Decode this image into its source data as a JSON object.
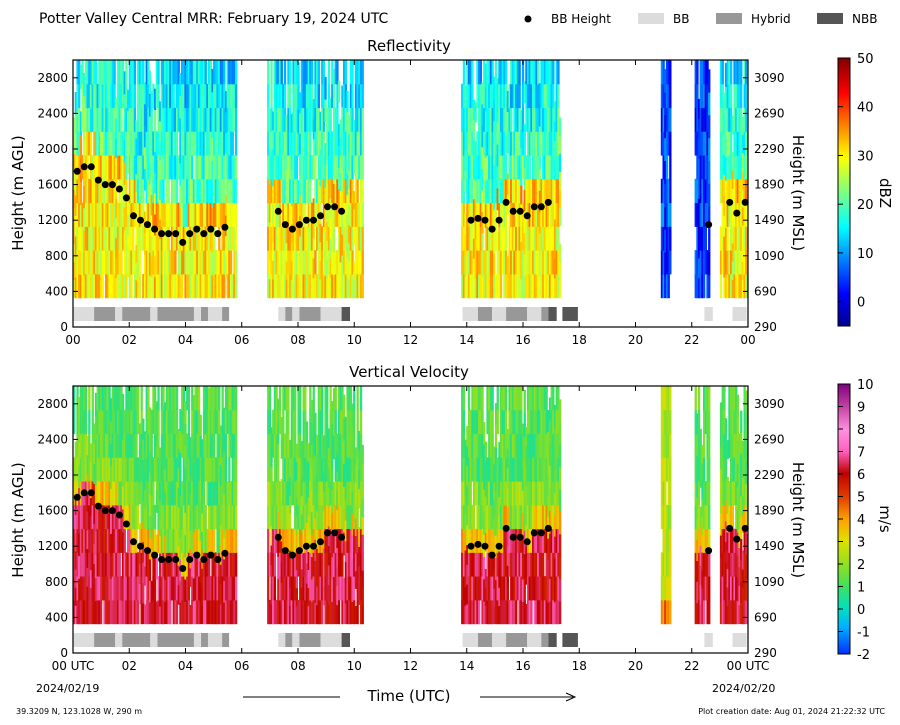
{
  "header": {
    "title": "Potter Valley Central MRR:  February 19, 2024 UTC",
    "legend": [
      {
        "label": "BB Height",
        "kind": "dot",
        "color": "#000000"
      },
      {
        "label": "BB",
        "kind": "swatch",
        "color": "#dcdcdc"
      },
      {
        "label": "Hybrid",
        "kind": "swatch",
        "color": "#989898"
      },
      {
        "label": "NBB",
        "kind": "swatch",
        "color": "#555555"
      }
    ]
  },
  "footer": {
    "location": "39.3209 N, 123.1028 W, 290 m",
    "creation_date": "Plot creation date: Aug 01, 2024 21:22:32 UTC",
    "xlabel": "Time (UTC)",
    "start_date": "2024/02/19",
    "end_date": "2024/02/20"
  },
  "colors": {
    "bb_light": "#dcdcdc",
    "hybrid": "#989898",
    "nbb": "#555555"
  },
  "chart_data": [
    {
      "type": "heatmap",
      "title": "Reflectivity",
      "ylabel": "Height (m AGL)",
      "ylabel_right": "Height (m MSL)",
      "colorbar_label": "dBZ",
      "colorbar_ticks": [
        "50",
        "40",
        "30",
        "20",
        "10",
        "0"
      ],
      "colorbar_range": [
        -5,
        50
      ],
      "colormap": "jet",
      "xlim": [
        0,
        24
      ],
      "ylim": [
        0,
        3000
      ],
      "x_ticks": [
        "00",
        "02",
        "04",
        "06",
        "08",
        "10",
        "12",
        "14",
        "16",
        "18",
        "20",
        "22",
        "00"
      ],
      "y_ticks": [
        "0",
        "400",
        "800",
        "1200",
        "1600",
        "2000",
        "2400",
        "2800"
      ],
      "y_ticks_right": [
        "290",
        "690",
        "1090",
        "1490",
        "1890",
        "2290",
        "2690",
        "3090"
      ],
      "data_periods": [
        [
          0,
          5.8
        ],
        [
          6.9,
          10.3
        ],
        [
          13.8,
          17.3
        ],
        [
          20.9,
          21.2
        ],
        [
          22.1,
          22.6
        ],
        [
          23.0,
          24.0
        ]
      ],
      "bb_height": {
        "x": [
          0.15,
          0.4,
          0.65,
          0.9,
          1.15,
          1.4,
          1.65,
          1.9,
          2.15,
          2.4,
          2.65,
          2.9,
          3.15,
          3.4,
          3.65,
          3.9,
          4.15,
          4.4,
          4.65,
          4.9,
          5.15,
          5.4,
          7.3,
          7.55,
          7.8,
          8.05,
          8.3,
          8.55,
          8.8,
          9.05,
          9.3,
          9.55,
          14.15,
          14.4,
          14.65,
          14.9,
          15.15,
          15.4,
          15.65,
          15.9,
          16.15,
          16.4,
          16.65,
          16.9,
          22.6,
          23.35,
          23.6,
          23.9
        ],
        "y": [
          1750,
          1800,
          1800,
          1650,
          1600,
          1600,
          1550,
          1450,
          1250,
          1200,
          1150,
          1100,
          1050,
          1050,
          1050,
          950,
          1050,
          1100,
          1050,
          1100,
          1050,
          1120,
          1300,
          1150,
          1100,
          1150,
          1200,
          1200,
          1250,
          1350,
          1350,
          1300,
          1200,
          1220,
          1200,
          1100,
          1200,
          1400,
          1300,
          1300,
          1250,
          1350,
          1350,
          1400,
          1150,
          1400,
          1280,
          1400
        ]
      },
      "bb_type_bar": [
        {
          "start": 0.0,
          "end": 0.75,
          "type": "BB"
        },
        {
          "start": 0.75,
          "end": 1.5,
          "type": "Hybrid"
        },
        {
          "start": 1.5,
          "end": 1.75,
          "type": "BB"
        },
        {
          "start": 1.75,
          "end": 2.75,
          "type": "Hybrid"
        },
        {
          "start": 2.75,
          "end": 3.0,
          "type": "BB"
        },
        {
          "start": 3.0,
          "end": 4.3,
          "type": "Hybrid"
        },
        {
          "start": 4.3,
          "end": 4.55,
          "type": "BB"
        },
        {
          "start": 4.55,
          "end": 4.8,
          "type": "Hybrid"
        },
        {
          "start": 4.8,
          "end": 5.3,
          "type": "BB"
        },
        {
          "start": 5.3,
          "end": 5.55,
          "type": "Hybrid"
        },
        {
          "start": 7.3,
          "end": 7.55,
          "type": "BB"
        },
        {
          "start": 7.55,
          "end": 7.8,
          "type": "Hybrid"
        },
        {
          "start": 7.8,
          "end": 8.05,
          "type": "BB"
        },
        {
          "start": 8.05,
          "end": 8.8,
          "type": "Hybrid"
        },
        {
          "start": 8.8,
          "end": 9.55,
          "type": "BB"
        },
        {
          "start": 9.55,
          "end": 9.85,
          "type": "NBB"
        },
        {
          "start": 13.85,
          "end": 14.4,
          "type": "BB"
        },
        {
          "start": 14.4,
          "end": 14.9,
          "type": "Hybrid"
        },
        {
          "start": 14.9,
          "end": 15.4,
          "type": "BB"
        },
        {
          "start": 15.4,
          "end": 16.15,
          "type": "Hybrid"
        },
        {
          "start": 16.15,
          "end": 16.65,
          "type": "BB"
        },
        {
          "start": 16.65,
          "end": 16.9,
          "type": "Hybrid"
        },
        {
          "start": 16.9,
          "end": 17.2,
          "type": "NBB"
        },
        {
          "start": 17.4,
          "end": 17.95,
          "type": "NBB"
        },
        {
          "start": 22.45,
          "end": 22.75,
          "type": "BB"
        },
        {
          "start": 23.45,
          "end": 23.95,
          "type": "BB"
        }
      ]
    },
    {
      "type": "heatmap",
      "title": "Vertical Velocity",
      "ylabel": "Height (m AGL)",
      "ylabel_right": "Height (m MSL)",
      "colorbar_label": "m/s",
      "colorbar_ticks": [
        "10",
        "9",
        "8",
        "7",
        "6",
        "5",
        "4",
        "3",
        "2",
        "1",
        "0",
        "-1",
        "-2"
      ],
      "colorbar_range": [
        -2,
        10
      ],
      "colormap": "velocity",
      "xlim": [
        0,
        24
      ],
      "ylim": [
        0,
        3000
      ],
      "x_ticks": [
        "00 UTC",
        "02",
        "04",
        "06",
        "08",
        "10",
        "12",
        "14",
        "16",
        "18",
        "20",
        "22",
        "00 UTC"
      ],
      "y_ticks": [
        "0",
        "400",
        "800",
        "1200",
        "1600",
        "2000",
        "2400",
        "2800"
      ],
      "y_ticks_right": [
        "290",
        "690",
        "1090",
        "1490",
        "1890",
        "2290",
        "2690",
        "3090"
      ],
      "data_periods": [
        [
          0,
          5.8
        ],
        [
          6.9,
          10.3
        ],
        [
          13.8,
          17.3
        ],
        [
          20.9,
          21.2
        ],
        [
          22.1,
          22.6
        ],
        [
          23.0,
          24.0
        ]
      ],
      "bb_height": "same as Reflectivity panel",
      "bb_type_bar": "same as Reflectivity panel"
    }
  ]
}
